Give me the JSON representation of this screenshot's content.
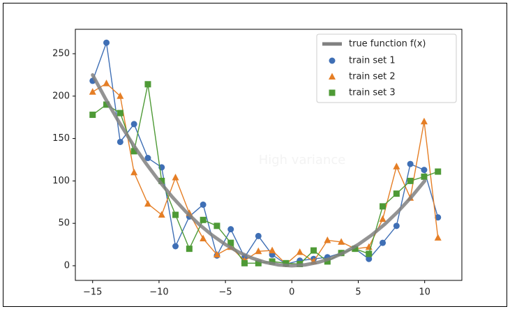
{
  "chart_data": {
    "type": "line",
    "annotation": "High variance",
    "xlim": [
      -16.3,
      12.8
    ],
    "ylim": [
      -17.3,
      278.8
    ],
    "xticks": [
      {
        "value": -15,
        "label": "−15"
      },
      {
        "value": -10,
        "label": "−10"
      },
      {
        "value": -5,
        "label": "−5"
      },
      0,
      5,
      10
    ],
    "yticks": [
      0,
      50,
      100,
      150,
      200,
      250
    ],
    "legend": "upper right",
    "true_function": {
      "name": "true function f(x)",
      "color": "#808080",
      "x": [
        -15,
        -14,
        -13,
        -12,
        -11,
        -10,
        -9,
        -8,
        -7,
        -6,
        -5,
        -4,
        -3,
        -2,
        -1,
        0,
        1,
        2,
        3,
        4,
        5,
        6,
        7,
        8,
        9,
        10
      ],
      "values": [
        225,
        196,
        169,
        144,
        121,
        100,
        81,
        64,
        49,
        36,
        25,
        16,
        9,
        4,
        1,
        0,
        1,
        4,
        9,
        16,
        25,
        36,
        49,
        64,
        81,
        100
      ]
    },
    "x": [
      -15,
      -13.96,
      -12.92,
      -11.88,
      -10.84,
      -9.8,
      -8.76,
      -7.72,
      -6.68,
      -5.64,
      -4.6,
      -3.56,
      -2.52,
      -1.48,
      -0.44,
      0.6,
      1.64,
      2.68,
      3.72,
      4.76,
      5.8,
      6.84,
      7.88,
      8.92,
      9.96,
      11
    ],
    "series": [
      {
        "name": "train set 1",
        "color": "#3f6fb5",
        "marker": "circle",
        "values": [
          218,
          263,
          146,
          167,
          127,
          116,
          23,
          58,
          72,
          12,
          43,
          10,
          35,
          13,
          2,
          6,
          8,
          10,
          15,
          20,
          8,
          27,
          47,
          120,
          113,
          57
        ]
      },
      {
        "name": "train set 2",
        "color": "#e57e25",
        "marker": "triangle",
        "values": [
          205,
          215,
          200,
          110,
          73,
          60,
          104,
          62,
          32,
          13,
          22,
          6,
          17,
          18,
          2,
          16,
          5,
          30,
          28,
          20,
          22,
          55,
          117,
          80,
          170,
          33
        ]
      },
      {
        "name": "train set 3",
        "color": "#4e9a36",
        "marker": "square",
        "values": [
          178,
          190,
          180,
          135,
          214,
          100,
          60,
          20,
          54,
          47,
          27,
          3,
          3,
          5,
          3,
          2,
          18,
          5,
          15,
          20,
          14,
          70,
          85,
          100,
          105,
          111
        ]
      }
    ]
  }
}
